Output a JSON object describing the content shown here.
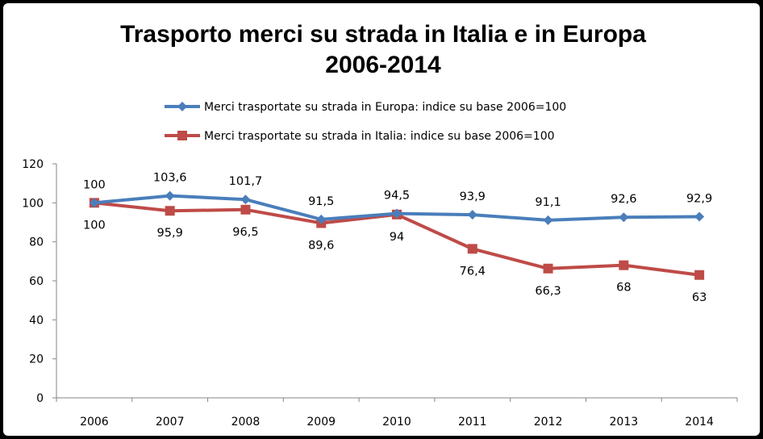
{
  "chart_data": {
    "type": "line",
    "title": "Trasporto merci su strada in Italia e in Europa",
    "subtitle": "2006-2014",
    "categories": [
      "2006",
      "2007",
      "2008",
      "2009",
      "2010",
      "2011",
      "2012",
      "2013",
      "2014"
    ],
    "ylim": [
      0,
      120
    ],
    "yticks": [
      0,
      20,
      40,
      60,
      80,
      100,
      120
    ],
    "grid": false,
    "legend_position": "top",
    "series": [
      {
        "name": "Merci trasportate su strada in Europa: indice su base 2006=100",
        "values": [
          100,
          103.6,
          101.7,
          91.5,
          94.5,
          93.9,
          91.1,
          92.6,
          92.9
        ],
        "labels": [
          "100",
          "103,6",
          "101,7",
          "91,5",
          "94,5",
          "93,9",
          "91,1",
          "92,6",
          "92,9"
        ],
        "color": "#4A7EBB",
        "marker": "diamond",
        "label_position": "above"
      },
      {
        "name": "Merci trasportate su strada in Italia: indice su base 2006=100",
        "values": [
          100,
          95.9,
          96.5,
          89.6,
          94,
          76.4,
          66.3,
          68,
          63
        ],
        "labels": [
          "100",
          "95,9",
          "96,5",
          "89,6",
          "94",
          "76,4",
          "66,3",
          "68",
          "63"
        ],
        "color": "#BE4B48",
        "marker": "square",
        "label_position": "below"
      }
    ]
  }
}
